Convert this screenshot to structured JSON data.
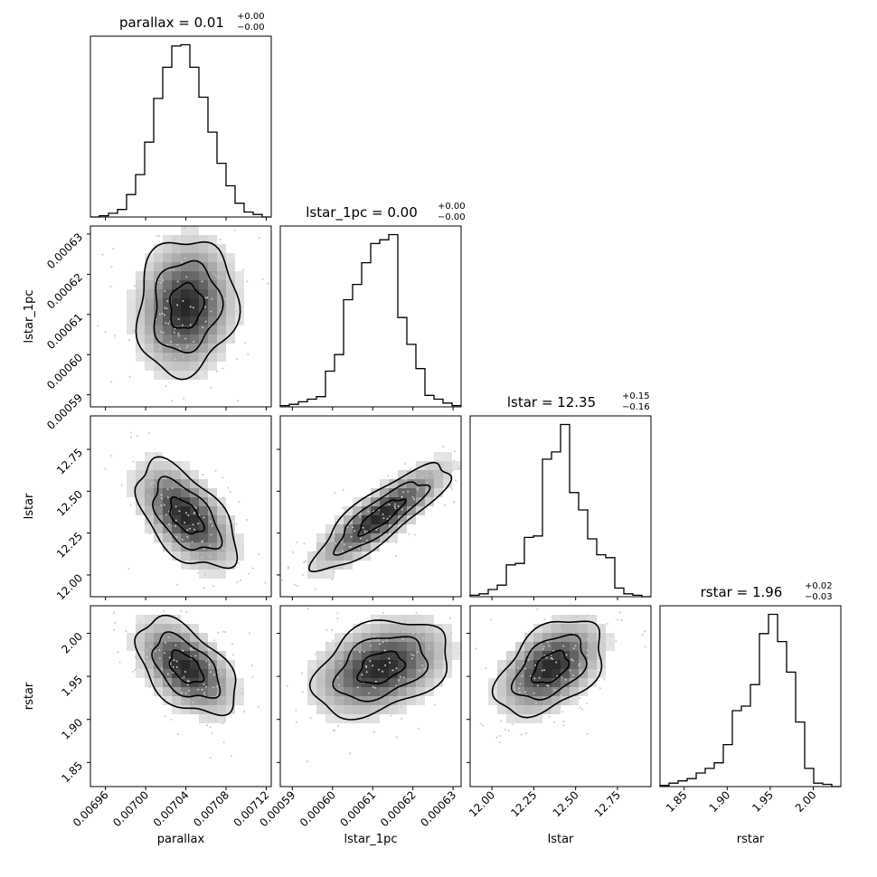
{
  "figure": {
    "type": "corner-plot",
    "colors": {
      "frame": "#000000",
      "hist": "#000000",
      "contour": "#000000",
      "background": "#ffffff"
    }
  },
  "chart_data": {
    "type": "corner",
    "parameters": [
      {
        "name": "parallax",
        "title_main": "parallax = 0.01",
        "title_sup": "+0.00",
        "title_sub": "−0.00",
        "xlabel": "parallax",
        "range": [
          0.006945,
          0.007125
        ],
        "ticks": [
          0.00696,
          0.007,
          0.00704,
          0.00708,
          0.00712
        ],
        "tick_labels": [
          "0.00696",
          "0.00700",
          "0.00704",
          "0.00708",
          "0.00712"
        ],
        "mean": 0.00704,
        "sd": 2.5e-05,
        "hist": [
          0,
          1,
          3,
          6,
          18,
          34,
          60,
          95,
          120,
          137,
          138,
          120,
          96,
          68,
          43,
          25,
          11,
          4,
          2,
          0
        ]
      },
      {
        "name": "lstar_1pc",
        "title_main": "lstar_1pc = 0.00",
        "title_sup": "+0.00",
        "title_sub": "−0.00",
        "xlabel": "lstar_1pc",
        "ylabel": "lstar_1pc",
        "range": [
          0.000587,
          0.000632
        ],
        "ticks": [
          0.00059,
          0.0006,
          0.00061,
          0.00062,
          0.00063
        ],
        "tick_labels": [
          "0.00059",
          "0.00060",
          "0.00061",
          "0.00062",
          "0.00063"
        ],
        "mean": 0.000612,
        "sd": 8.5e-06,
        "hist": [
          1,
          2,
          4,
          6,
          8,
          28,
          41,
          84,
          96,
          113,
          128,
          131,
          135,
          70,
          49,
          30,
          9,
          6,
          3,
          1
        ]
      },
      {
        "name": "lstar",
        "title_main": "lstar = 12.35",
        "title_sup": "+0.15",
        "title_sub": "−0.16",
        "xlabel": "lstar",
        "ylabel": "lstar",
        "range": [
          11.87,
          12.95
        ],
        "ticks": [
          12.0,
          12.25,
          12.5,
          12.75
        ],
        "tick_labels": [
          "12.00",
          "12.25",
          "12.50",
          "12.75"
        ],
        "mean": 12.35,
        "sd": 0.16,
        "hist": [
          1,
          2,
          5,
          8,
          22,
          23,
          41,
          42,
          95,
          100,
          119,
          72,
          60,
          40,
          29,
          27,
          6,
          2,
          1,
          0
        ]
      },
      {
        "name": "rstar",
        "title_main": "rstar = 1.96",
        "title_sup": "+0.02",
        "title_sub": "−0.03",
        "xlabel": "rstar",
        "ylabel": "rstar",
        "range": [
          1.822,
          2.032
        ],
        "ticks": [
          1.85,
          1.9,
          1.95,
          2.0
        ],
        "tick_labels": [
          "1.85",
          "1.90",
          "1.95",
          "2.00"
        ],
        "mean": 1.96,
        "sd": 0.028,
        "hist": [
          1,
          3,
          5,
          7,
          12,
          16,
          21,
          37,
          67,
          71,
          90,
          135,
          152,
          128,
          101,
          57,
          16,
          3,
          2,
          0
        ]
      }
    ],
    "correlations": [
      [
        1,
        0.1,
        -0.55,
        -0.5
      ],
      [
        0.1,
        1,
        0.85,
        0.35
      ],
      [
        -0.55,
        0.85,
        1,
        0.45
      ],
      [
        -0.5,
        0.35,
        0.45,
        1
      ]
    ],
    "grid": false
  }
}
